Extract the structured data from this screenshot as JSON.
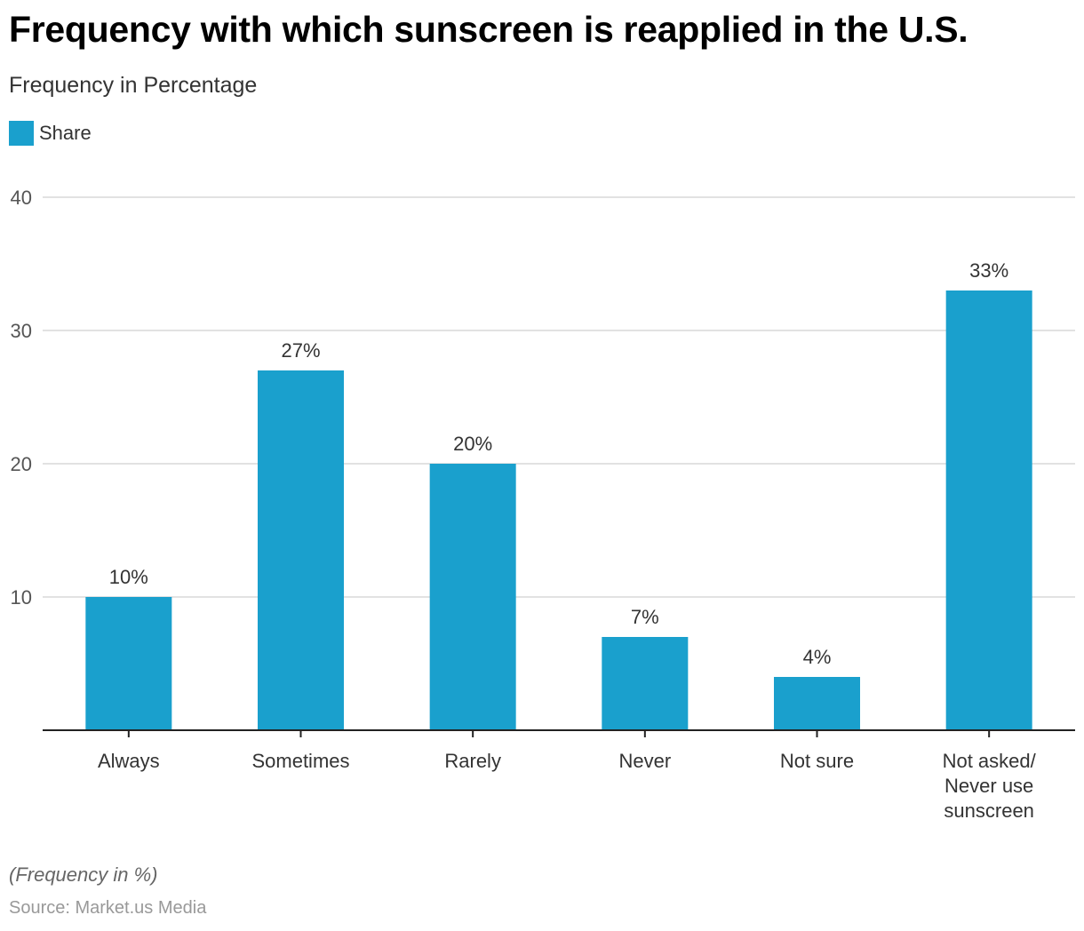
{
  "chart_data": {
    "type": "bar",
    "title": "Frequency with which sunscreen is reapplied in the U.S.",
    "subtitle": "Frequency in Percentage",
    "xlabel": "",
    "ylabel": "",
    "categories": [
      "Always",
      "Sometimes",
      "Rarely",
      "Never",
      "Not sure",
      "Not asked/ Never use sunscreen"
    ],
    "category_lines": [
      [
        "Always"
      ],
      [
        "Sometimes"
      ],
      [
        "Rarely"
      ],
      [
        "Never"
      ],
      [
        "Not sure"
      ],
      [
        "Not asked/",
        "Never use",
        "sunscreen"
      ]
    ],
    "series": [
      {
        "name": "Share",
        "values": [
          10,
          27,
          20,
          7,
          4,
          33
        ],
        "color": "#1aa0cd"
      }
    ],
    "data_labels": [
      "10%",
      "27%",
      "20%",
      "7%",
      "4%",
      "33%"
    ],
    "ylim": [
      0,
      40
    ],
    "yticks": [
      10,
      20,
      30,
      40
    ],
    "grid": true,
    "legend_position": "top-left"
  },
  "footer": {
    "note": "(Frequency in %)",
    "source": "Source: Market.us Media"
  }
}
